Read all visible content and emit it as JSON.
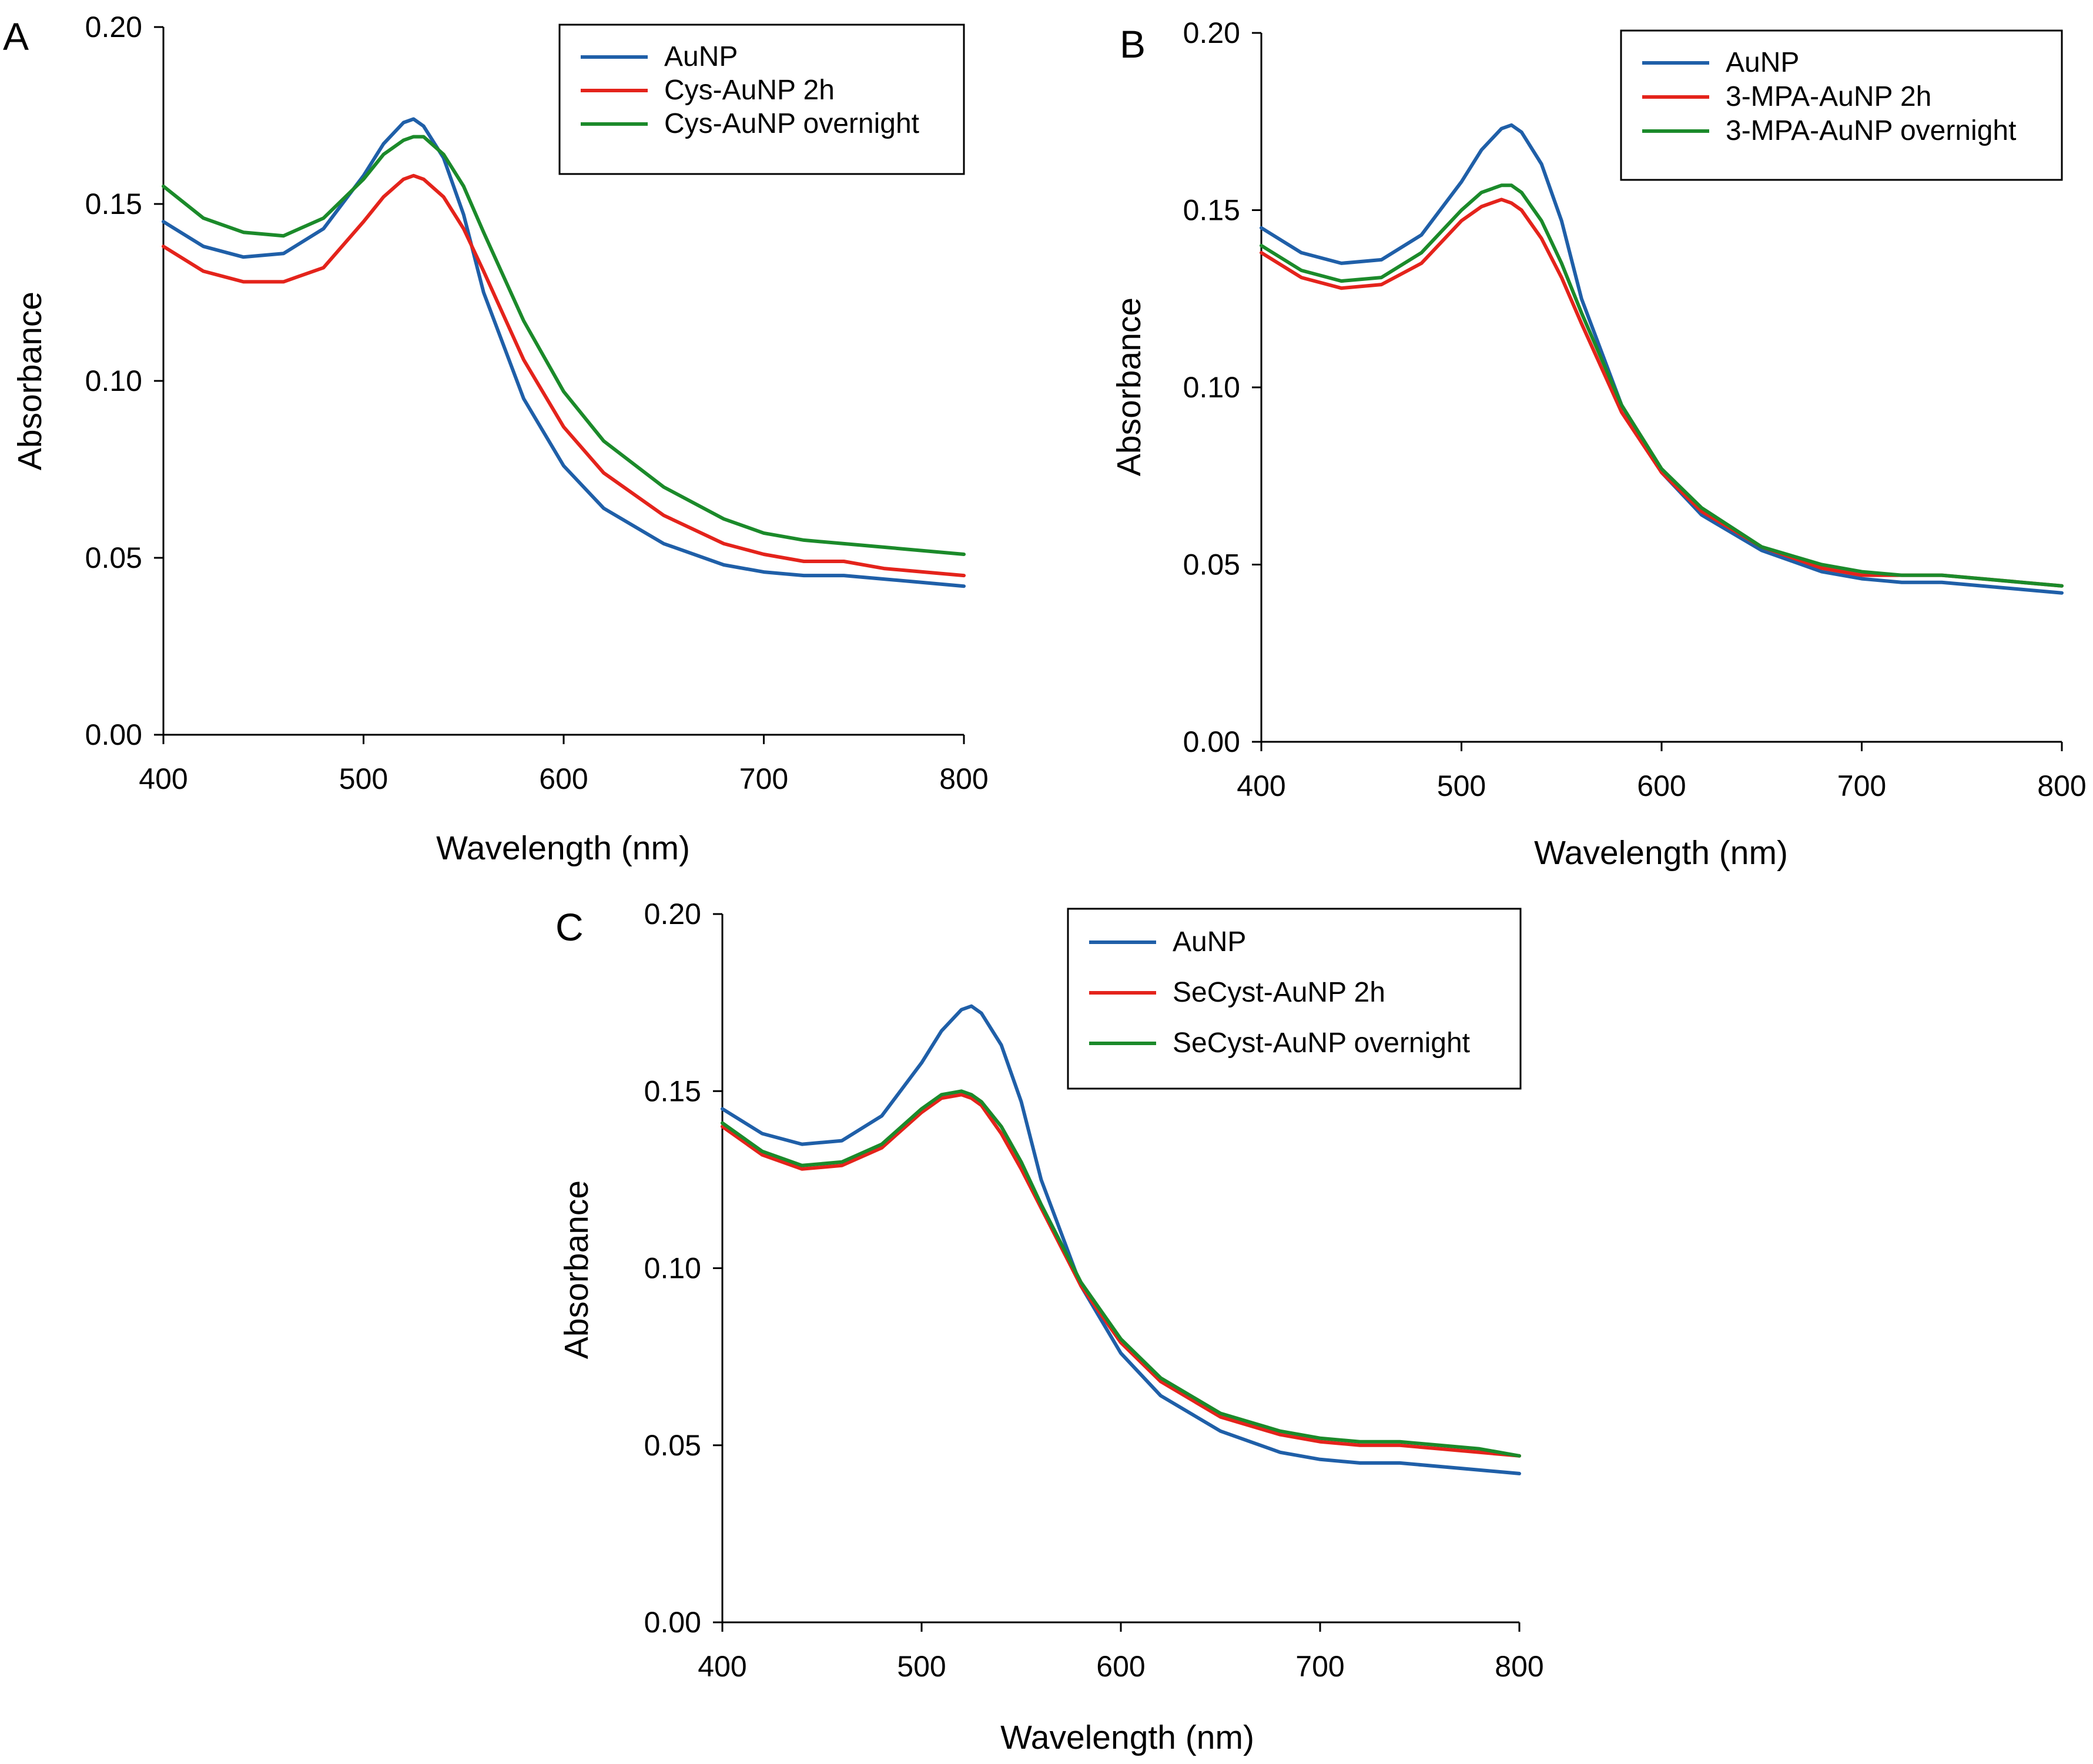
{
  "colors": {
    "blue": "#1f5fa8",
    "red": "#e4231b",
    "green": "#1b8a2a"
  },
  "chart_data": [
    {
      "type": "line",
      "panel": "A",
      "title": "",
      "xlabel": "Wavelength (nm)",
      "ylabel": "Absorbance",
      "xlim": [
        400,
        800
      ],
      "ylim": [
        0,
        0.2
      ],
      "xticks": [
        400,
        500,
        600,
        700,
        800
      ],
      "xtick_labels": [
        "400",
        "500",
        "600",
        "700",
        "800"
      ],
      "yticks": [
        0,
        0.05,
        0.1,
        0.15,
        0.2
      ],
      "ytick_labels": [
        "0.00",
        "0.05",
        "0.10",
        "0.15",
        "0.20"
      ],
      "legend_position": "top-right",
      "x": [
        400,
        420,
        440,
        460,
        480,
        500,
        510,
        520,
        525,
        530,
        540,
        550,
        560,
        580,
        600,
        620,
        650,
        680,
        700,
        720,
        740,
        760,
        780,
        800
      ],
      "series": [
        {
          "name": "AuNP",
          "color": "#1f5fa8",
          "values": [
            0.145,
            0.138,
            0.135,
            0.136,
            0.143,
            0.158,
            0.167,
            0.173,
            0.174,
            0.172,
            0.163,
            0.147,
            0.125,
            0.095,
            0.076,
            0.064,
            0.054,
            0.048,
            0.046,
            0.045,
            0.045,
            0.044,
            0.043,
            0.042
          ]
        },
        {
          "name": "Cys-AuNP 2h",
          "color": "#e4231b",
          "values": [
            0.138,
            0.131,
            0.128,
            0.128,
            0.132,
            0.145,
            0.152,
            0.157,
            0.158,
            0.157,
            0.152,
            0.143,
            0.131,
            0.106,
            0.087,
            0.074,
            0.062,
            0.054,
            0.051,
            0.049,
            0.049,
            0.047,
            0.046,
            0.045
          ]
        },
        {
          "name": "Cys-AuNP overnight",
          "color": "#1b8a2a",
          "values": [
            0.155,
            0.146,
            0.142,
            0.141,
            0.146,
            0.157,
            0.164,
            0.168,
            0.169,
            0.169,
            0.164,
            0.155,
            0.142,
            0.117,
            0.097,
            0.083,
            0.07,
            0.061,
            0.057,
            0.055,
            0.054,
            0.053,
            0.052,
            0.051
          ]
        }
      ]
    },
    {
      "type": "line",
      "panel": "B",
      "title": "",
      "xlabel": "Wavelength (nm)",
      "ylabel": "Absorbance",
      "xlim": [
        400,
        800
      ],
      "ylim": [
        0,
        0.2
      ],
      "xticks": [
        400,
        500,
        600,
        700,
        800
      ],
      "xtick_labels": [
        "400",
        "500",
        "600",
        "700",
        "800"
      ],
      "yticks": [
        0,
        0.05,
        0.1,
        0.15,
        0.2
      ],
      "ytick_labels": [
        "0.00",
        "0.05",
        "0.10",
        "0.15",
        "0.20"
      ],
      "legend_position": "top-right",
      "x": [
        400,
        420,
        440,
        460,
        480,
        500,
        510,
        520,
        525,
        530,
        540,
        550,
        560,
        580,
        600,
        620,
        650,
        680,
        700,
        720,
        740,
        760,
        780,
        800
      ],
      "series": [
        {
          "name": "AuNP",
          "color": "#1f5fa8",
          "values": [
            0.145,
            0.138,
            0.135,
            0.136,
            0.143,
            0.158,
            0.167,
            0.173,
            0.174,
            0.172,
            0.163,
            0.147,
            0.125,
            0.095,
            0.076,
            0.064,
            0.054,
            0.048,
            0.046,
            0.045,
            0.045,
            0.044,
            0.043,
            0.042
          ]
        },
        {
          "name": "3-MPA-AuNP 2h",
          "color": "#e4231b",
          "values": [
            0.138,
            0.131,
            0.128,
            0.129,
            0.135,
            0.147,
            0.151,
            0.153,
            0.152,
            0.15,
            0.142,
            0.131,
            0.118,
            0.093,
            0.076,
            0.065,
            0.055,
            0.049,
            0.047,
            0.047,
            0.047,
            0.046,
            0.045,
            0.044
          ]
        },
        {
          "name": "3-MPA-AuNP overnight",
          "color": "#1b8a2a",
          "values": [
            0.14,
            0.133,
            0.13,
            0.131,
            0.138,
            0.15,
            0.155,
            0.157,
            0.157,
            0.155,
            0.147,
            0.135,
            0.121,
            0.095,
            0.077,
            0.066,
            0.055,
            0.05,
            0.048,
            0.047,
            0.047,
            0.046,
            0.045,
            0.044
          ]
        }
      ]
    },
    {
      "type": "line",
      "panel": "C",
      "title": "",
      "xlabel": "Wavelength (nm)",
      "ylabel": "Absorbance",
      "xlim": [
        400,
        800
      ],
      "ylim": [
        0,
        0.2
      ],
      "xticks": [
        400,
        500,
        600,
        700,
        800
      ],
      "xtick_labels": [
        "400",
        "500",
        "600",
        "700",
        "800"
      ],
      "yticks": [
        0,
        0.05,
        0.1,
        0.15,
        0.2
      ],
      "ytick_labels": [
        "0.00",
        "0.05",
        "0.10",
        "0.15",
        "0.20"
      ],
      "legend_position": "top-right",
      "x": [
        400,
        420,
        440,
        460,
        480,
        500,
        510,
        520,
        525,
        530,
        540,
        550,
        560,
        580,
        600,
        620,
        650,
        680,
        700,
        720,
        740,
        760,
        780,
        800
      ],
      "series": [
        {
          "name": "AuNP",
          "color": "#1f5fa8",
          "values": [
            0.145,
            0.138,
            0.135,
            0.136,
            0.143,
            0.158,
            0.167,
            0.173,
            0.174,
            0.172,
            0.163,
            0.147,
            0.125,
            0.095,
            0.076,
            0.064,
            0.054,
            0.048,
            0.046,
            0.045,
            0.045,
            0.044,
            0.043,
            0.042
          ]
        },
        {
          "name": "SeCyst-AuNP 2h",
          "color": "#e4231b",
          "values": [
            0.14,
            0.132,
            0.128,
            0.129,
            0.134,
            0.144,
            0.148,
            0.149,
            0.148,
            0.146,
            0.138,
            0.128,
            0.117,
            0.095,
            0.079,
            0.068,
            0.058,
            0.053,
            0.051,
            0.05,
            0.05,
            0.049,
            0.048,
            0.047
          ]
        },
        {
          "name": "SeCyst-AuNP overnight",
          "color": "#1b8a2a",
          "values": [
            0.141,
            0.133,
            0.129,
            0.13,
            0.135,
            0.145,
            0.149,
            0.15,
            0.149,
            0.147,
            0.14,
            0.13,
            0.118,
            0.096,
            0.08,
            0.069,
            0.059,
            0.054,
            0.052,
            0.051,
            0.051,
            0.05,
            0.049,
            0.047
          ]
        }
      ]
    }
  ]
}
